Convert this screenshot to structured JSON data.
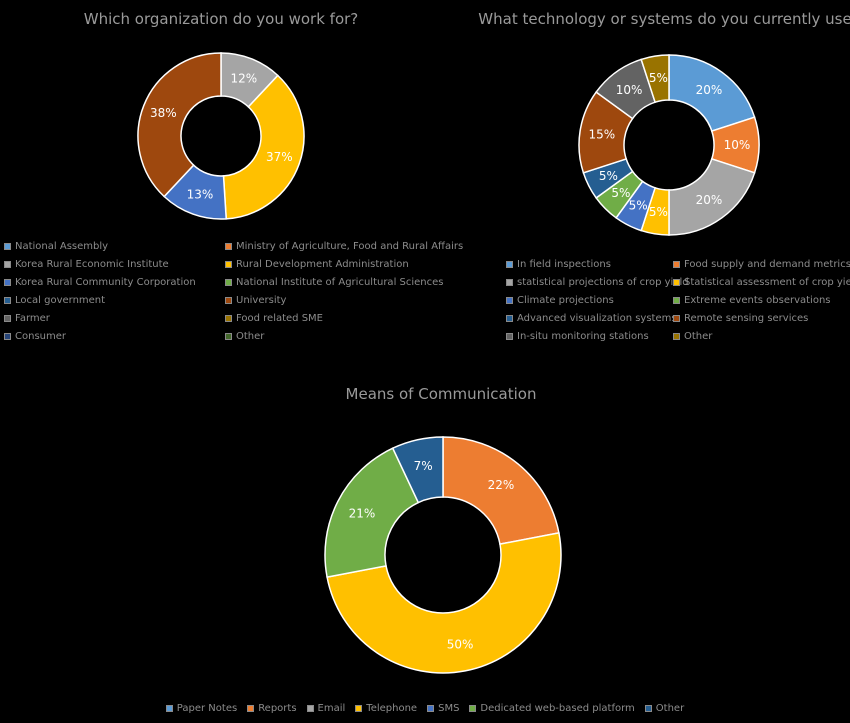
{
  "chart_data": [
    {
      "type": "pie",
      "title": "Which organization do you work for?",
      "categories": [
        "National Assembly",
        "Ministry of Agriculture, Food and Rural Affairs",
        "Korea Rural Economic Institute",
        "Rural Development Administration",
        "Korea Rural Community Corporation",
        "National Institute of Agricultural Sciences",
        "Local government",
        "University",
        "Farmer",
        "Food related SME",
        "Consumer",
        "Other"
      ],
      "colors": [
        "#5b9bd5",
        "#ed7d31",
        "#a5a5a5",
        "#ffc000",
        "#4472c4",
        "#70ad47",
        "#255e91",
        "#9e480e",
        "#636363",
        "#997300",
        "#264478",
        "#43682b"
      ],
      "values": [
        0,
        0,
        12,
        37,
        13,
        0,
        0,
        38,
        0,
        0,
        0,
        0
      ],
      "data_labels": [
        "",
        "",
        "12%",
        "37%",
        "13%",
        "",
        "",
        "38%",
        "",
        "",
        "",
        ""
      ],
      "legend_position": "bottom"
    },
    {
      "type": "pie",
      "title": "What technology or systems do you currently use?",
      "categories": [
        "In field inspections",
        "Food supply and demand metrics",
        "statistical projections of crop yield",
        "Statistical assessment of crop yield",
        "Climate projections",
        "Extreme events observations",
        "Advanced visualization systems",
        "Remote sensing services",
        "In-situ monitoring stations",
        "Other"
      ],
      "colors": [
        "#5b9bd5",
        "#ed7d31",
        "#a5a5a5",
        "#ffc000",
        "#4472c4",
        "#70ad47",
        "#255e91",
        "#9e480e",
        "#636363",
        "#997300"
      ],
      "values": [
        20,
        10,
        20,
        5,
        5,
        5,
        5,
        15,
        10,
        5
      ],
      "data_labels": [
        "20%",
        "10%",
        "20%",
        "5%",
        "5%",
        "5%",
        "5%",
        "15%",
        "10%",
        "5%"
      ],
      "legend_position": "bottom"
    },
    {
      "type": "pie",
      "title": "Means of Communication",
      "categories": [
        "Paper Notes",
        "Reports",
        "Email",
        "Telephone",
        "SMS",
        "Dedicated web-based platform",
        "Other"
      ],
      "colors": [
        "#5b9bd5",
        "#ed7d31",
        "#a5a5a5",
        "#ffc000",
        "#4472c4",
        "#70ad47",
        "#255e91"
      ],
      "values": [
        0,
        22,
        0,
        50,
        0,
        21,
        7
      ],
      "data_labels": [
        "",
        "22%",
        "",
        "50%",
        "",
        "21%",
        "7%"
      ],
      "legend_position": "bottom"
    }
  ]
}
